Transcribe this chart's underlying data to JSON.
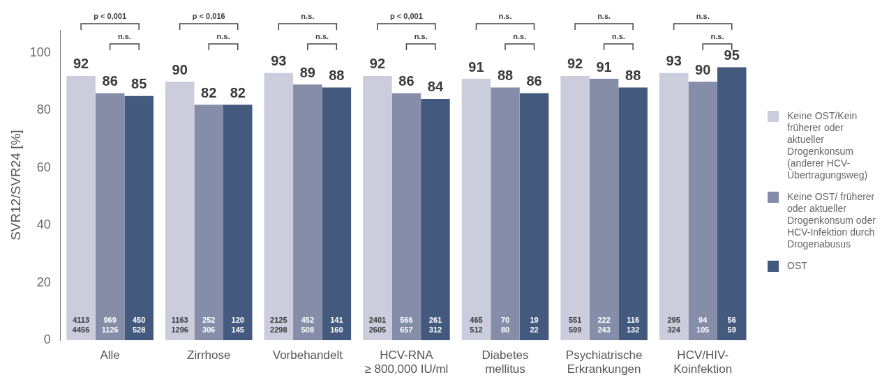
{
  "chart_data": {
    "type": "bar",
    "ylabel": "SVR12/SVR24 [%]",
    "categories": [
      "Alle",
      "Zirrhose",
      "Vorbehandelt",
      "HCV-RNA\n≥ 800,000 IU/ml",
      "Diabetes\nmellitus",
      "Psychiatrische\nErkrankungen",
      "HCV/HIV-\nKoinfektion"
    ],
    "series": [
      {
        "name": "Keine OST/Kein früherer oder aktueller Drogenkonsum (anderer HCV-Übertragungsweg)",
        "color": "#cbcddc",
        "values": [
          92,
          90,
          93,
          92,
          91,
          92,
          93
        ]
      },
      {
        "name": "Keine OST/ früherer oder aktueller Drogenkonsum oder HCV-Infektion durch Drogenabusus",
        "color": "#868da8",
        "values": [
          86,
          82,
          89,
          86,
          88,
          91,
          90
        ]
      },
      {
        "name": "OST",
        "color": "#44597e",
        "values": [
          85,
          82,
          88,
          84,
          86,
          88,
          95
        ]
      }
    ],
    "ylim": [
      0,
      108
    ],
    "yticks": [
      0,
      20,
      40,
      60,
      80,
      100
    ],
    "grid": false,
    "legend": "right",
    "data_labels": true,
    "annotations": [
      "4113\n4456",
      "969\n1126",
      "450\n528",
      "1163\n1296",
      "252\n306",
      "120\n145",
      "2125\n2298",
      "452\n508",
      "141\n160",
      "2401\n2605",
      "566\n657",
      "261\n312",
      "465\n512",
      "70\n80",
      "19\n22",
      "551\n599",
      "222\n243",
      "116\n132",
      "295\n324",
      "94\n105",
      "56\n59",
      "p < 0,001",
      "n.s.",
      "p < 0,016",
      "n.s.",
      "n.s.",
      "n.s.",
      "p < 0,001",
      "n.s.",
      "n.s.",
      "n.s.",
      "n.s.",
      "n.s.",
      "n.s.",
      "n.s."
    ]
  }
}
